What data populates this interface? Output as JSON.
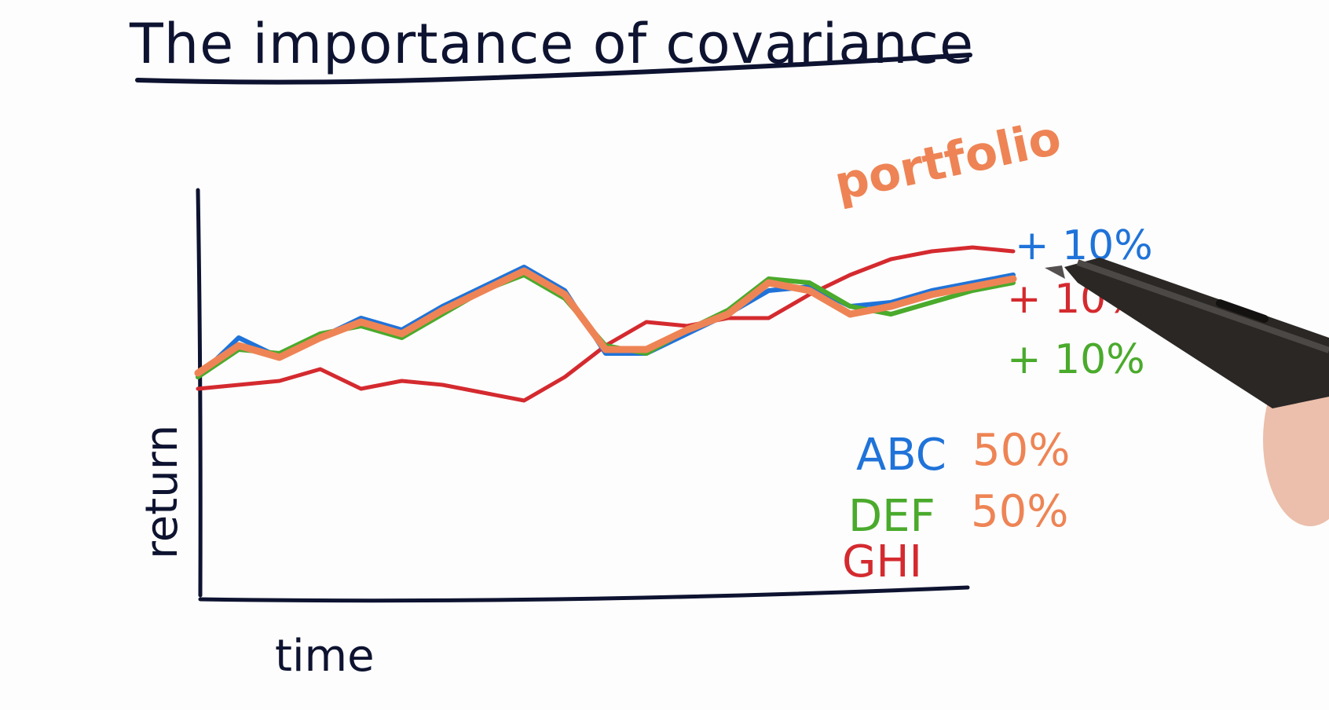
{
  "title": "The importance of covariance",
  "colors": {
    "ink": "#0d1330",
    "abc": "#1f73d9",
    "def": "#4aaa2c",
    "ghi": "#d42a2f",
    "portfolio": "#ee8455"
  },
  "chart_data": {
    "type": "line",
    "title": "The importance of covariance",
    "xlabel": "time",
    "ylabel": "return",
    "grid": false,
    "x": [
      0,
      1,
      2,
      3,
      4,
      5,
      6,
      7,
      8,
      9,
      10,
      11,
      12,
      13,
      14,
      15,
      16,
      17,
      18,
      19,
      20
    ],
    "ylim": [
      0,
      100
    ],
    "series": [
      {
        "name": "ABC",
        "color_key": "abc",
        "values": [
          48,
          58,
          53,
          58,
          63,
          60,
          66,
          71,
          76,
          70,
          54,
          54,
          59,
          64,
          70,
          71,
          66,
          67,
          70,
          72,
          74
        ]
      },
      {
        "name": "DEF",
        "color_key": "def",
        "values": [
          48,
          55,
          54,
          59,
          61,
          58,
          64,
          70,
          74,
          68,
          56,
          54,
          60,
          65,
          73,
          72,
          66,
          64,
          67,
          70,
          72
        ]
      },
      {
        "name": "GHI",
        "color_key": "ghi",
        "values": [
          45,
          46,
          47,
          50,
          45,
          47,
          46,
          44,
          42,
          48,
          56,
          62,
          61,
          63,
          63,
          69,
          74,
          78,
          80,
          81,
          80
        ]
      },
      {
        "color_key": "portfolio",
        "values": [
          49,
          56,
          53,
          58,
          62,
          59,
          65,
          70,
          75,
          69,
          55,
          55,
          60,
          64,
          72,
          70,
          64,
          66,
          69,
          71,
          73
        ]
      }
    ],
    "annotations": {
      "portfolio_label": "portfolio",
      "changes": [
        "+ 10%",
        "+ 10%",
        "+ 10%"
      ],
      "legend": [
        {
          "name": "ABC",
          "weight": "50%"
        },
        {
          "name": "DEF",
          "weight": "50%"
        },
        {
          "name": "GHI",
          "weight": ""
        }
      ]
    }
  }
}
